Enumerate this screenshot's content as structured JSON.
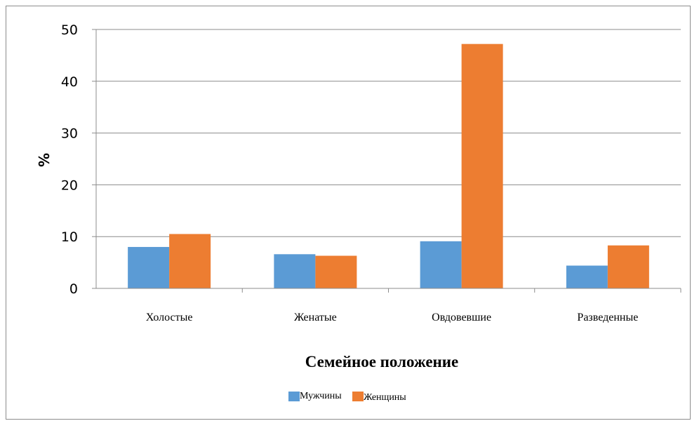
{
  "chart_data": {
    "type": "bar",
    "categories": [
      "Холостые",
      "Женатые",
      "Овдовевшие",
      "Разведенные"
    ],
    "series": [
      {
        "name": "Мужчины",
        "values": [
          8.0,
          6.6,
          9.1,
          4.4
        ],
        "color": "#5b9bd5"
      },
      {
        "name": "Женщины",
        "values": [
          10.5,
          6.3,
          47.2,
          8.3
        ],
        "color": "#ed7d31"
      }
    ],
    "title": "",
    "xlabel": "Семейное положение",
    "ylabel": "%",
    "ylim": [
      0,
      50
    ],
    "yticks": [
      0,
      10,
      20,
      30,
      40,
      50
    ],
    "grid": true,
    "legend_position": "bottom"
  }
}
